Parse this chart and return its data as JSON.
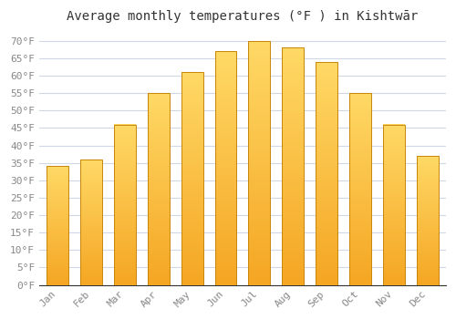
{
  "title": "Average monthly temperatures (°F ) in Kishtwār",
  "months": [
    "Jan",
    "Feb",
    "Mar",
    "Apr",
    "May",
    "Jun",
    "Jul",
    "Aug",
    "Sep",
    "Oct",
    "Nov",
    "Dec"
  ],
  "values": [
    34,
    36,
    46,
    55,
    61,
    67,
    70,
    68,
    64,
    55,
    46,
    37
  ],
  "bar_color_bottom": "#F5A623",
  "bar_color_top": "#FFD966",
  "bar_edge_color": "#C8860A",
  "ylim": [
    0,
    73
  ],
  "yticks": [
    0,
    5,
    10,
    15,
    20,
    25,
    30,
    35,
    40,
    45,
    50,
    55,
    60,
    65,
    70
  ],
  "ytick_labels": [
    "0°F",
    "5°F",
    "10°F",
    "15°F",
    "20°F",
    "25°F",
    "30°F",
    "35°F",
    "40°F",
    "45°F",
    "50°F",
    "55°F",
    "60°F",
    "65°F",
    "70°F"
  ],
  "bg_color": "#ffffff",
  "grid_color": "#d0d8e8",
  "title_fontsize": 10,
  "tick_fontsize": 8
}
